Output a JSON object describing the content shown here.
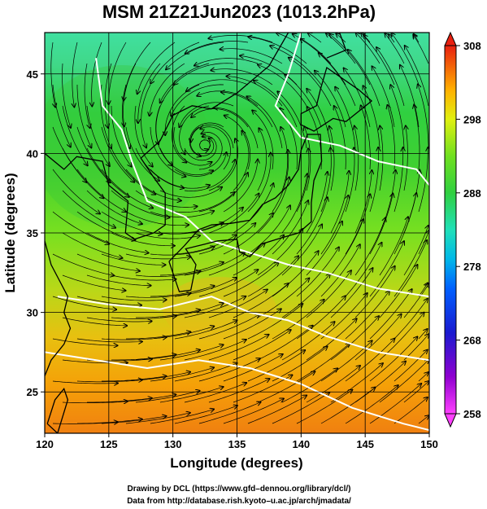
{
  "title": "MSM 21Z21Jun2023 (1013.2hPa)",
  "axes": {
    "x_label": "Longitude (degrees)",
    "y_label": "Latitude  (degrees)",
    "x_range": [
      120,
      150
    ],
    "y_range": [
      22.4,
      47.6
    ],
    "x_ticks": [
      "120",
      "125",
      "130",
      "135",
      "140",
      "145",
      "150"
    ],
    "y_ticks": [
      "25",
      "30",
      "35",
      "40",
      "45"
    ],
    "grid": true
  },
  "colorbar": {
    "range": [
      258,
      308
    ],
    "labels": [
      "308",
      "298",
      "288",
      "278",
      "268",
      "258"
    ],
    "position": "right"
  },
  "colors": {
    "land_coast": "#000000",
    "contour": "#ffffff",
    "streamline": "#000000"
  },
  "features": {
    "low_pressure_center": [
      132.5,
      40.5
    ]
  },
  "credits": {
    "line1": "Drawing by DCL (https://www.gfd–dennou.org/library/dcl/)",
    "line2": "Data from http://database.rish.kyoto–u.ac.jp/arch/jmadata/"
  }
}
